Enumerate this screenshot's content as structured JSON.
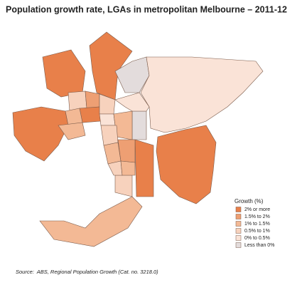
{
  "title": "Population growth rate, LGAs in metropolitan Melbourne – 2011-12",
  "legend": {
    "title": "Growth (%)",
    "items": [
      {
        "label": "2%    or more",
        "color": "#e8804a"
      },
      {
        "label": "1.5% to 2%",
        "color": "#ee9f73"
      },
      {
        "label": "1%    to 1.5%",
        "color": "#f3b995"
      },
      {
        "label": "0.5% to 1%",
        "color": "#f7d2bd"
      },
      {
        "label": "0%    to 0.5%",
        "color": "#fae3d7"
      },
      {
        "label": "Less than 0%",
        "color": "#e3dcdc"
      }
    ]
  },
  "source": "Source:  ABS, Regional Population Growth (Cat. no. 3218.0)"
}
